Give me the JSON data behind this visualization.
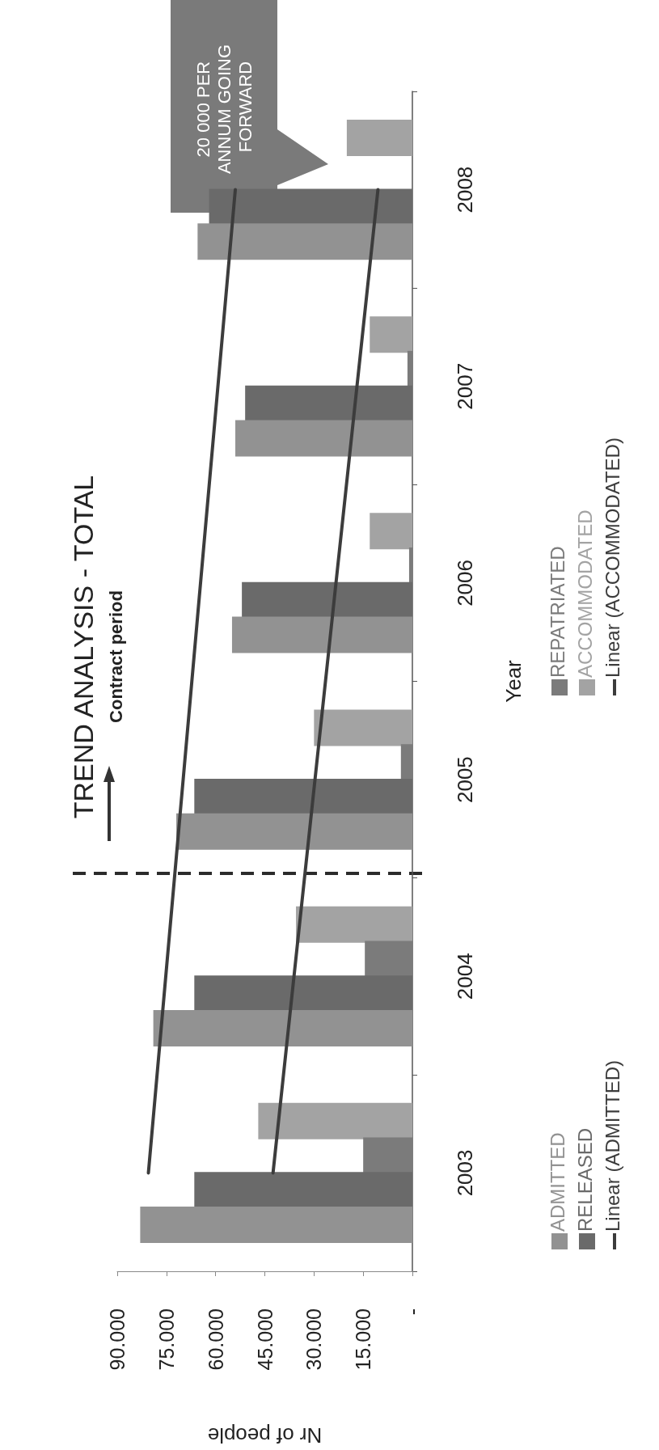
{
  "chart_data": {
    "type": "bar",
    "orientation": "horizontal",
    "title": "TREND ANALYSIS - TOTAL",
    "xlabel": "Nr of people",
    "ylabel": "Year",
    "categories": [
      "2008",
      "2007",
      "2006",
      "2005",
      "2004",
      "2003"
    ],
    "xlim": [
      90000,
      0
    ],
    "xticks": [
      {
        "value": 0,
        "label": "-"
      },
      {
        "value": 15000,
        "label": "15.000"
      },
      {
        "value": 30000,
        "label": "30.000"
      },
      {
        "value": 45000,
        "label": "45.000"
      },
      {
        "value": 60000,
        "label": "60.000"
      },
      {
        "value": 75000,
        "label": "75.000"
      },
      {
        "value": 90000,
        "label": "90.000"
      }
    ],
    "series": [
      {
        "name": "ADMITTED",
        "color": "#929292",
        "values": [
          65500,
          54000,
          55000,
          72000,
          79000,
          83000
        ]
      },
      {
        "name": "RELEASED",
        "color": "#6a6a6a",
        "values": [
          62000,
          51000,
          52000,
          66500,
          66500,
          66500
        ]
      },
      {
        "name": "REPATRIATED",
        "color": "#7b7b7b",
        "values": [
          0,
          1500,
          1000,
          3500,
          14500,
          15000
        ]
      },
      {
        "name": "ACCOMMODATED",
        "color": "#a3a3a3",
        "values": [
          20000,
          13000,
          13000,
          30000,
          35500,
          47000
        ]
      },
      {
        "name": "Linear (ADMITTED)",
        "type": "line",
        "color": "#3c3c3c",
        "values": [
          54000,
          null,
          null,
          null,
          null,
          80500
        ],
        "marker": "none",
        "line_style": "solid"
      },
      {
        "name": "Linear (ACCOMMODATED)",
        "type": "line",
        "color": "#3c3c3c",
        "values": [
          10500,
          null,
          null,
          null,
          null,
          42500
        ],
        "marker": "none",
        "line_style": "solid"
      }
    ],
    "annotations": [
      "Contract period",
      "20 000 PER ANNUM GOING FORWARD"
    ],
    "legend": "bottom"
  }
}
